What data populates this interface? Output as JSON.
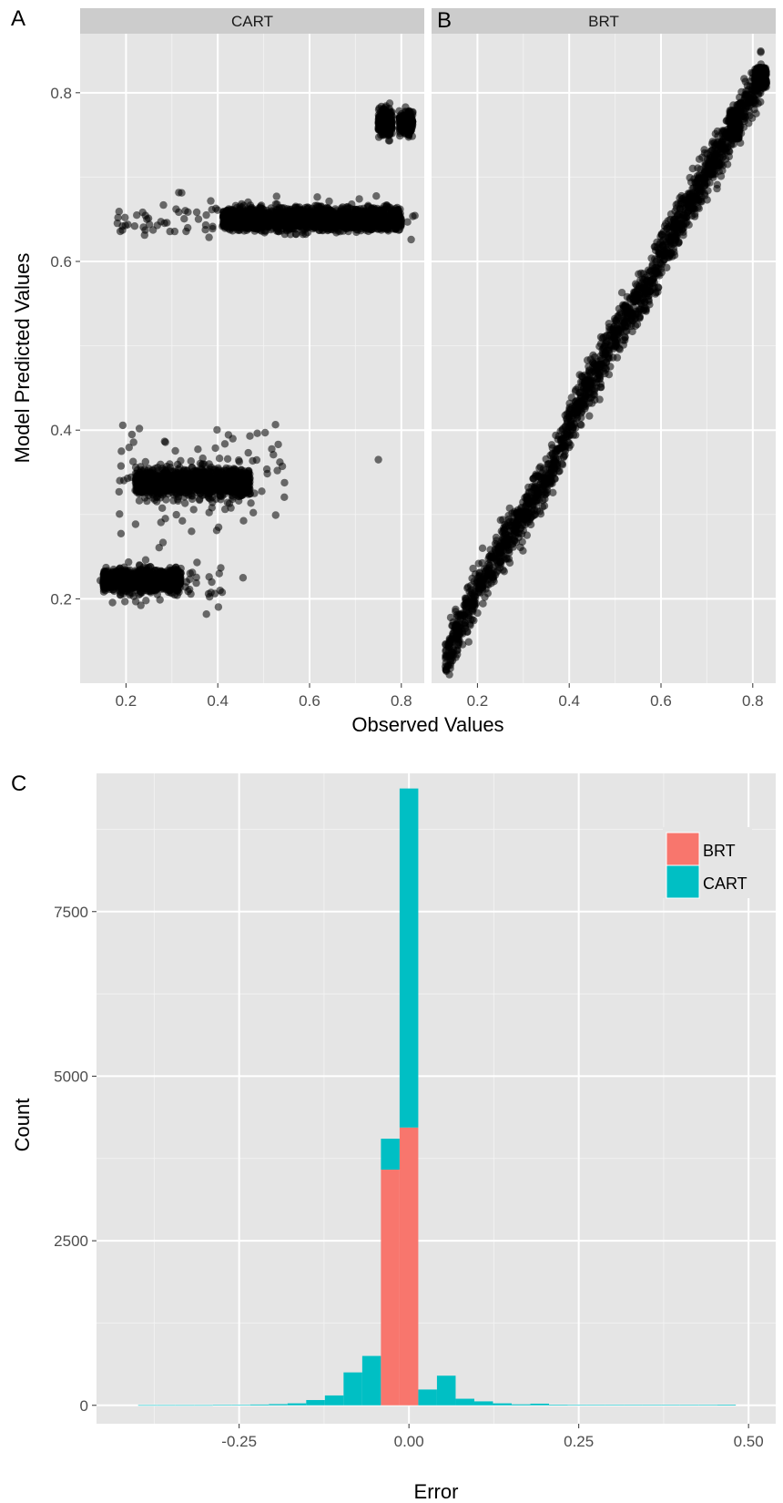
{
  "figure": {
    "panel_a_letter": "A",
    "panel_b_letter": "B",
    "panel_c_letter": "C",
    "scatter_xlabel": "Observed Values",
    "scatter_ylabel": "Model Predicted Values",
    "hist_xlabel": "Error",
    "hist_ylabel": "Count"
  },
  "colors": {
    "panel_bg": "#E5E5E5",
    "strip_bg": "#CCCCCC",
    "grid_major": "#FFFFFF",
    "grid_minor": "#F2F2F2",
    "point": "#000000",
    "brt": "#F8766D",
    "cart": "#00BFC4",
    "tick_text": "#4D4D4D"
  },
  "chart_data": [
    {
      "type": "scatter",
      "facet_label": "CART",
      "xlabel": "Observed Values",
      "ylabel": "Model Predicted Values",
      "xlim": [
        0.1,
        0.85
      ],
      "ylim": [
        0.1,
        0.87
      ],
      "x_ticks": [
        0.2,
        0.4,
        0.6,
        0.8
      ],
      "x_tick_labels": [
        "0.2",
        "0.4",
        "0.6",
        "0.8"
      ],
      "y_ticks": [
        0.2,
        0.4,
        0.6,
        0.8
      ],
      "y_tick_labels": [
        "0.2",
        "0.4",
        "0.6",
        "0.8"
      ],
      "grid": true,
      "point_alpha": 0.55,
      "clusters": [
        {
          "x_range": [
            0.15,
            0.32
          ],
          "y_center": 0.222,
          "y_jitter": 0.012,
          "n": 900,
          "dense": true
        },
        {
          "x_range": [
            0.14,
            0.41
          ],
          "y_center": 0.218,
          "y_jitter": 0.016,
          "n": 70,
          "dense": false
        },
        {
          "x_range": [
            0.22,
            0.47
          ],
          "y_center": 0.338,
          "y_jitter": 0.014,
          "n": 1300,
          "dense": true
        },
        {
          "x_range": [
            0.18,
            0.55
          ],
          "y_center": 0.348,
          "y_jitter": 0.03,
          "n": 110,
          "dense": false
        },
        {
          "x_range": [
            0.41,
            0.8
          ],
          "y_center": 0.65,
          "y_jitter": 0.011,
          "n": 2200,
          "dense": true
        },
        {
          "x_range": [
            0.18,
            0.83
          ],
          "y_center": 0.65,
          "y_jitter": 0.013,
          "n": 130,
          "dense": false
        },
        {
          "x_range": [
            0.75,
            0.78
          ],
          "y_center": 0.765,
          "y_jitter": 0.014,
          "n": 260,
          "dense": true
        },
        {
          "x_range": [
            0.795,
            0.825
          ],
          "y_center": 0.765,
          "y_jitter": 0.014,
          "n": 200,
          "dense": true
        }
      ],
      "outliers": [
        {
          "x": 0.75,
          "y": 0.365
        },
        {
          "x": 0.455,
          "y": 0.225
        },
        {
          "x": 0.19,
          "y": 0.375
        },
        {
          "x": 0.405,
          "y": 0.21
        }
      ]
    },
    {
      "type": "scatter",
      "facet_label": "BRT",
      "xlabel": "Observed Values",
      "ylabel": "Model Predicted Values",
      "xlim": [
        0.1,
        0.85
      ],
      "ylim": [
        0.1,
        0.87
      ],
      "x_ticks": [
        0.2,
        0.4,
        0.6,
        0.8
      ],
      "x_tick_labels": [
        "0.2",
        "0.4",
        "0.6",
        "0.8"
      ],
      "y_ticks": [
        0.2,
        0.4,
        0.6,
        0.8
      ],
      "y_tick_labels": [
        "0.2",
        "0.4",
        "0.6",
        "0.8"
      ],
      "grid": true,
      "point_alpha": 0.55,
      "trend": [
        {
          "x": 0.13,
          "y": 0.13
        },
        {
          "x": 0.18,
          "y": 0.19
        },
        {
          "x": 0.23,
          "y": 0.24
        },
        {
          "x": 0.3,
          "y": 0.3
        },
        {
          "x": 0.36,
          "y": 0.35
        },
        {
          "x": 0.42,
          "y": 0.43
        },
        {
          "x": 0.5,
          "y": 0.51
        },
        {
          "x": 0.58,
          "y": 0.58
        },
        {
          "x": 0.66,
          "y": 0.67
        },
        {
          "x": 0.72,
          "y": 0.72
        },
        {
          "x": 0.76,
          "y": 0.76
        },
        {
          "x": 0.82,
          "y": 0.82
        }
      ],
      "y_noise": 0.014,
      "n": 1900,
      "caps": [
        {
          "x_range": [
            0.805,
            0.83
          ],
          "y_range": [
            0.805,
            0.83
          ],
          "n": 160
        },
        {
          "x_range": [
            0.75,
            0.77
          ],
          "y_range": [
            0.745,
            0.78
          ],
          "n": 120
        }
      ]
    },
    {
      "type": "bar",
      "subtype": "stacked_histogram",
      "xlabel": "Error",
      "ylabel": "Count",
      "xlim": [
        -0.46,
        0.54
      ],
      "ylim": [
        -280,
        9600
      ],
      "x_ticks": [
        -0.25,
        0.0,
        0.25,
        0.5
      ],
      "x_tick_labels": [
        "-0.25",
        "0.00",
        "0.25",
        "0.50"
      ],
      "y_ticks": [
        0,
        2500,
        5000,
        7500
      ],
      "y_tick_labels": [
        "0",
        "2500",
        "5000",
        "7500"
      ],
      "grid": true,
      "legend_position": "top-right",
      "bin_width": 0.0275,
      "bin_centers": [
        -0.385,
        -0.3575,
        -0.33,
        -0.3025,
        -0.275,
        -0.2475,
        -0.22,
        -0.1925,
        -0.165,
        -0.1375,
        -0.11,
        -0.0825,
        -0.055,
        -0.0275,
        0.0,
        0.0275,
        0.055,
        0.0825,
        0.11,
        0.1375,
        0.165,
        0.1925,
        0.22,
        0.2475,
        0.275,
        0.3025,
        0.33,
        0.3575,
        0.385,
        0.4125,
        0.44,
        0.4675
      ],
      "series": [
        {
          "name": "BRT",
          "color": "#F8766D",
          "values": [
            0,
            0,
            0,
            0,
            0,
            0,
            0,
            0,
            0,
            0,
            0,
            0,
            0,
            3580,
            4220,
            0,
            0,
            0,
            0,
            0,
            0,
            0,
            0,
            0,
            0,
            0,
            0,
            0,
            0,
            0,
            0,
            0
          ]
        },
        {
          "name": "CART",
          "color": "#00BFC4",
          "values": [
            3,
            3,
            3,
            3,
            5,
            8,
            12,
            18,
            30,
            80,
            150,
            500,
            750,
            470,
            5150,
            240,
            450,
            100,
            60,
            30,
            15,
            25,
            10,
            8,
            8,
            5,
            5,
            8,
            5,
            5,
            5,
            10
          ]
        }
      ]
    }
  ]
}
